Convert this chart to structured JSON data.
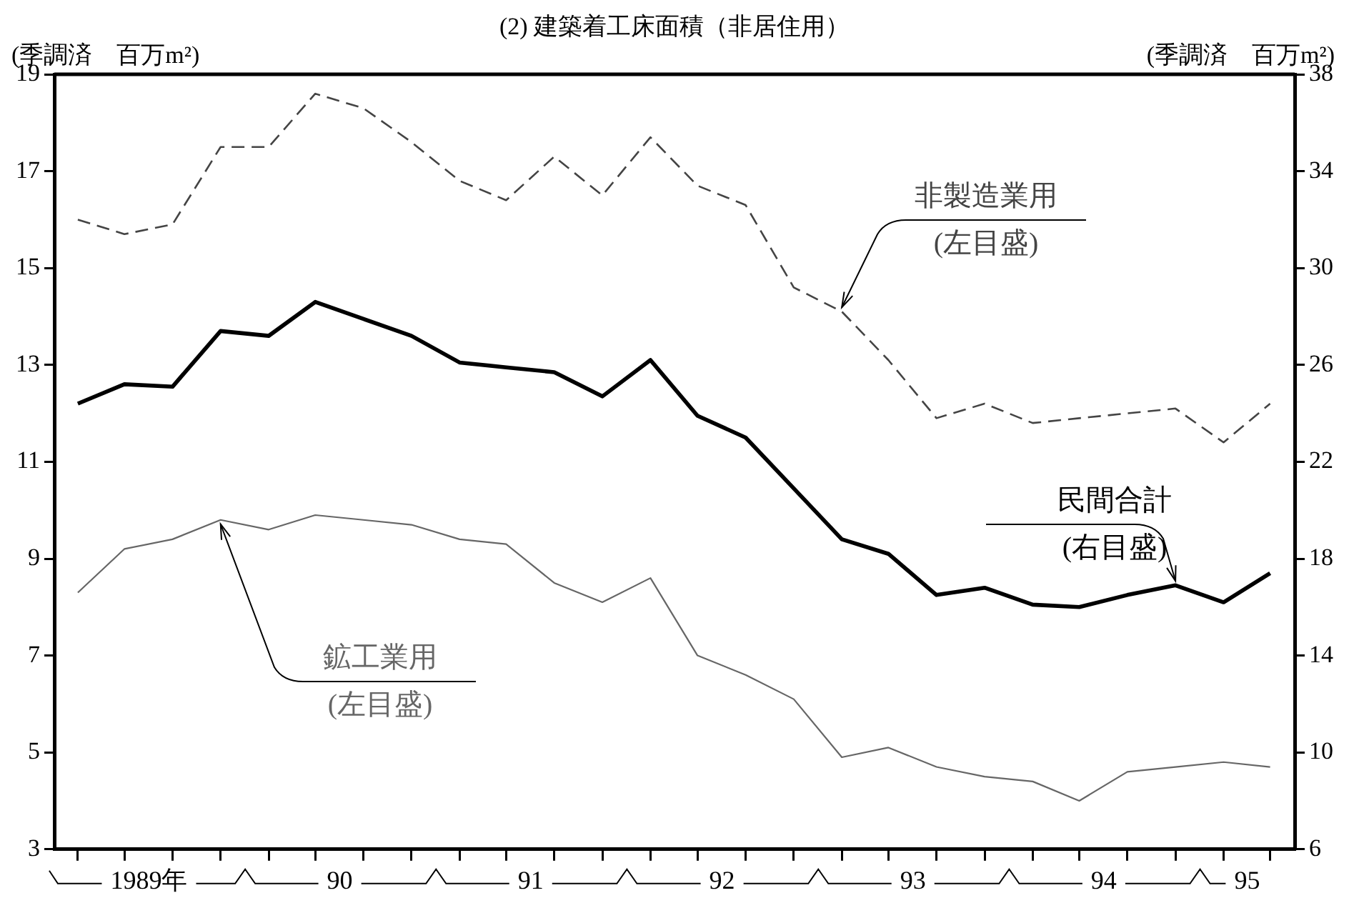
{
  "chart_data": {
    "type": "line",
    "title": "(2) 建築着工床面積（非居住用）",
    "ylabel": "(季調済　百万m²)",
    "y2label": "(季調済　百万m²)",
    "x": [
      "1989-02-15",
      "1989-05-15",
      "1989-08-15",
      "1989-11-15",
      "1990-02-15",
      "1990-05-15",
      "1990-08-15",
      "1990-11-15",
      "1991-02-15",
      "1991-05-15",
      "1991-08-15",
      "1991-11-15",
      "1992-02-15",
      "1992-05-15",
      "1992-08-15",
      "1992-11-15",
      "1993-02-15",
      "1993-05-15",
      "1993-08-15",
      "1993-11-15",
      "1994-02-15",
      "1994-05-15",
      "1994-08-15",
      "1994-11-15",
      "1995-02-15",
      "1995-05-15"
    ],
    "xlim": [
      "1989-01-01",
      "1995-07-01"
    ],
    "xticks": [
      {
        "value": "1989-02-15",
        "label": null
      },
      {
        "value": "1989-05-15",
        "label": null
      },
      {
        "value": "1989-07-01",
        "label": "1989年"
      },
      {
        "value": "1989-08-15",
        "label": null
      },
      {
        "value": "1989-11-15",
        "label": null
      },
      {
        "value": "1990-02-15",
        "label": null
      },
      {
        "value": "1990-05-15",
        "label": null
      },
      {
        "value": "1990-07-01",
        "label": "90"
      },
      {
        "value": "1990-08-15",
        "label": null
      },
      {
        "value": "1990-11-15",
        "label": null
      },
      {
        "value": "1991-02-15",
        "label": null
      },
      {
        "value": "1991-05-15",
        "label": null
      },
      {
        "value": "1991-07-01",
        "label": "91"
      },
      {
        "value": "1991-08-15",
        "label": null
      },
      {
        "value": "1991-11-15",
        "label": null
      },
      {
        "value": "1992-02-15",
        "label": null
      },
      {
        "value": "1992-05-15",
        "label": null
      },
      {
        "value": "1992-07-01",
        "label": "92"
      },
      {
        "value": "1992-08-15",
        "label": null
      },
      {
        "value": "1992-11-15",
        "label": null
      },
      {
        "value": "1993-02-15",
        "label": null
      },
      {
        "value": "1993-05-15",
        "label": null
      },
      {
        "value": "1993-07-01",
        "label": "93"
      },
      {
        "value": "1993-08-15",
        "label": null
      },
      {
        "value": "1993-11-15",
        "label": null
      },
      {
        "value": "1994-02-15",
        "label": null
      },
      {
        "value": "1994-05-15",
        "label": null
      },
      {
        "value": "1994-07-01",
        "label": "94"
      },
      {
        "value": "1994-08-15",
        "label": null
      },
      {
        "value": "1994-11-15",
        "label": null
      },
      {
        "value": "1995-02-15",
        "label": null
      },
      {
        "value": "1995-04-01",
        "label": "95"
      },
      {
        "value": "1995-05-15",
        "label": null
      }
    ],
    "series": [
      {
        "name": "非製造業用",
        "color": "#444444",
        "line_style": "dashed",
        "axis": "y",
        "values": [
          16.0,
          15.7,
          15.9,
          17.5,
          17.5,
          18.6,
          18.3,
          17.6,
          16.8,
          16.4,
          17.3,
          16.5,
          17.7,
          16.7,
          16.3,
          14.6,
          14.1,
          13.1,
          11.9,
          12.2,
          11.8,
          11.9,
          12.0,
          12.1,
          11.4,
          12.2
        ]
      },
      {
        "name": "民間合計",
        "color": "#000000",
        "line_style": "solid",
        "axis": "y2",
        "values": [
          24.4,
          25.2,
          25.1,
          27.4,
          27.2,
          28.6,
          27.9,
          27.2,
          26.1,
          25.9,
          25.7,
          24.7,
          26.2,
          23.9,
          23.0,
          20.9,
          18.8,
          18.2,
          16.5,
          16.8,
          16.1,
          16.0,
          16.5,
          16.9,
          16.2,
          17.4
        ]
      },
      {
        "name": "鉱工業用",
        "color": "#666666",
        "line_style": "solid",
        "axis": "y",
        "values": [
          8.3,
          9.2,
          9.4,
          9.8,
          9.6,
          9.9,
          9.8,
          9.7,
          9.4,
          9.3,
          8.5,
          8.1,
          8.6,
          7.0,
          6.6,
          6.1,
          4.9,
          5.1,
          4.7,
          4.5,
          4.4,
          4.0,
          4.6,
          4.7,
          4.8,
          4.7
        ]
      }
    ],
    "annotations": [
      "(左目盛)",
      "(右目盛)",
      "(左目盛)"
    ],
    "ylim": [
      3,
      19
    ],
    "yticks": [
      3,
      5,
      7,
      9,
      11,
      13,
      15,
      17,
      19
    ],
    "y2lim": [
      6,
      38
    ],
    "y2ticks": [
      6,
      10,
      14,
      18,
      22,
      26,
      30,
      34,
      38
    ],
    "legend": false
  }
}
